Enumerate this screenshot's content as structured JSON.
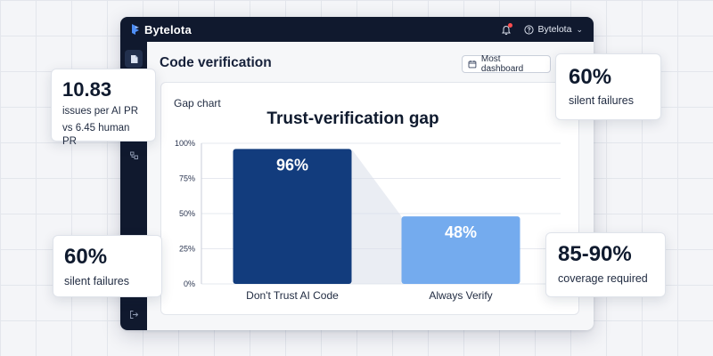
{
  "app": {
    "brand": "Bytelota",
    "user": "Bytelota"
  },
  "page": {
    "title": "Code verification",
    "dashboard_select": "Most dashboard"
  },
  "chart_card": {
    "label": "Gap chart"
  },
  "chart_data": {
    "type": "bar",
    "title": "Trust-verification gap",
    "categories": [
      "Don't Trust AI Code",
      "Always Verify"
    ],
    "values": [
      96,
      48
    ],
    "value_labels": [
      "96%",
      "48%"
    ],
    "y_ticks": [
      "0%",
      "25%",
      "50%",
      "75%",
      "100%"
    ],
    "ylim": [
      0,
      100
    ],
    "colors": [
      "#123c7d",
      "#74abee"
    ],
    "grid": true
  },
  "stats": [
    {
      "value": "10.83",
      "line1": "issues per AI PR",
      "line2": "vs 6.45 human PR"
    },
    {
      "value": "60%",
      "line1": "silent failures"
    },
    {
      "value": "60%",
      "line1": "silent failures"
    },
    {
      "value": "85-90%",
      "line1": "coverage required"
    }
  ],
  "icons": {
    "logo": "bytelota-logo-icon",
    "bell": "bell-icon",
    "user": "question-circle-icon",
    "calendar": "calendar-icon",
    "doc": "document-icon",
    "files": "files-icon",
    "logout": "logout-icon"
  }
}
